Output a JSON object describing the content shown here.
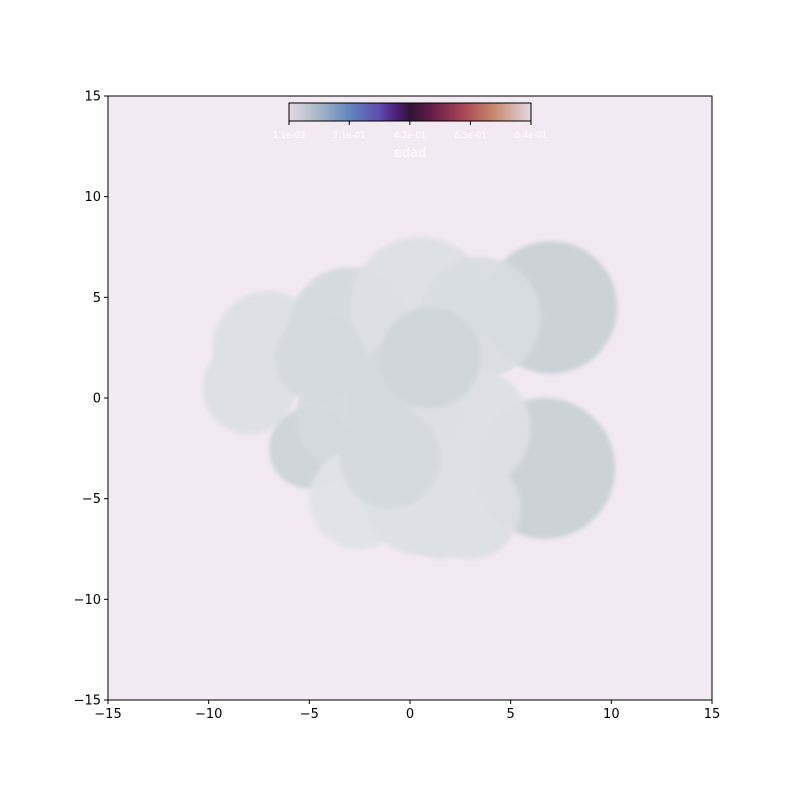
{
  "chart_data": {
    "type": "heatmap",
    "title": "",
    "xlabel": "",
    "ylabel": "",
    "xlim": [
      -15,
      15
    ],
    "ylim": [
      -15,
      15
    ],
    "x_ticks": [
      -15,
      -10,
      -5,
      0,
      5,
      10,
      15
    ],
    "y_ticks": [
      -15,
      -10,
      -5,
      0,
      5,
      10,
      15
    ],
    "x_tick_labels": [
      "−15",
      "−10",
      "−5",
      "0",
      "5",
      "10",
      "15"
    ],
    "y_tick_labels": [
      "−15",
      "−10",
      "−5",
      "0",
      "5",
      "10",
      "15"
    ],
    "grid": false,
    "background_color": "#f3e9f3",
    "colormap": "twilight",
    "colorbar": {
      "label": "edad",
      "location": "top-center, inside axes",
      "range": [
        0.0011,
        0.84
      ],
      "ticks": [
        0.0011,
        0.21,
        0.42,
        0.63,
        0.84
      ],
      "tick_labels": [
        "1.1e-03",
        "2.1e-01",
        "4.2e-01",
        "6.3e-01",
        "8.4e-01"
      ],
      "label_color": "#ffffff"
    },
    "regions": [
      {
        "x": -7,
        "y": 2.5,
        "r": 2.8,
        "value": 0.02
      },
      {
        "x": -8,
        "y": 0.5,
        "r": 2.3,
        "value": 0.02
      },
      {
        "x": 7,
        "y": 4.5,
        "r": 3.3,
        "value": 0.05
      },
      {
        "x": 6.7,
        "y": -3.5,
        "r": 3.5,
        "value": 0.05
      },
      {
        "x": -5,
        "y": -2.5,
        "r": 2.0,
        "value": 0.04
      },
      {
        "x": -3,
        "y": 3.5,
        "r": 3.0,
        "value": 0.03
      },
      {
        "x": 0.5,
        "y": 4.5,
        "r": 3.5,
        "value": 0.02
      },
      {
        "x": 3.5,
        "y": 4,
        "r": 3.0,
        "value": 0.025
      },
      {
        "x": -3,
        "y": -1,
        "r": 2.7,
        "value": 0.03
      },
      {
        "x": 0,
        "y": 0,
        "r": 3.0,
        "value": 0.03
      },
      {
        "x": 3,
        "y": -1.5,
        "r": 3.0,
        "value": 0.02
      },
      {
        "x": -2.5,
        "y": -5,
        "r": 2.5,
        "value": 0.015
      },
      {
        "x": 0.5,
        "y": -5,
        "r": 2.8,
        "value": 0.02
      },
      {
        "x": 3,
        "y": -5.5,
        "r": 2.5,
        "value": 0.02
      },
      {
        "x": 1.5,
        "y": -6.5,
        "r": 1.5,
        "value": 0.02
      },
      {
        "x": -4.5,
        "y": 2,
        "r": 2.2,
        "value": 0.03
      },
      {
        "x": 1,
        "y": 2,
        "r": 2.5,
        "value": 0.035
      },
      {
        "x": -1,
        "y": -3,
        "r": 2.5,
        "value": 0.03
      }
    ]
  }
}
